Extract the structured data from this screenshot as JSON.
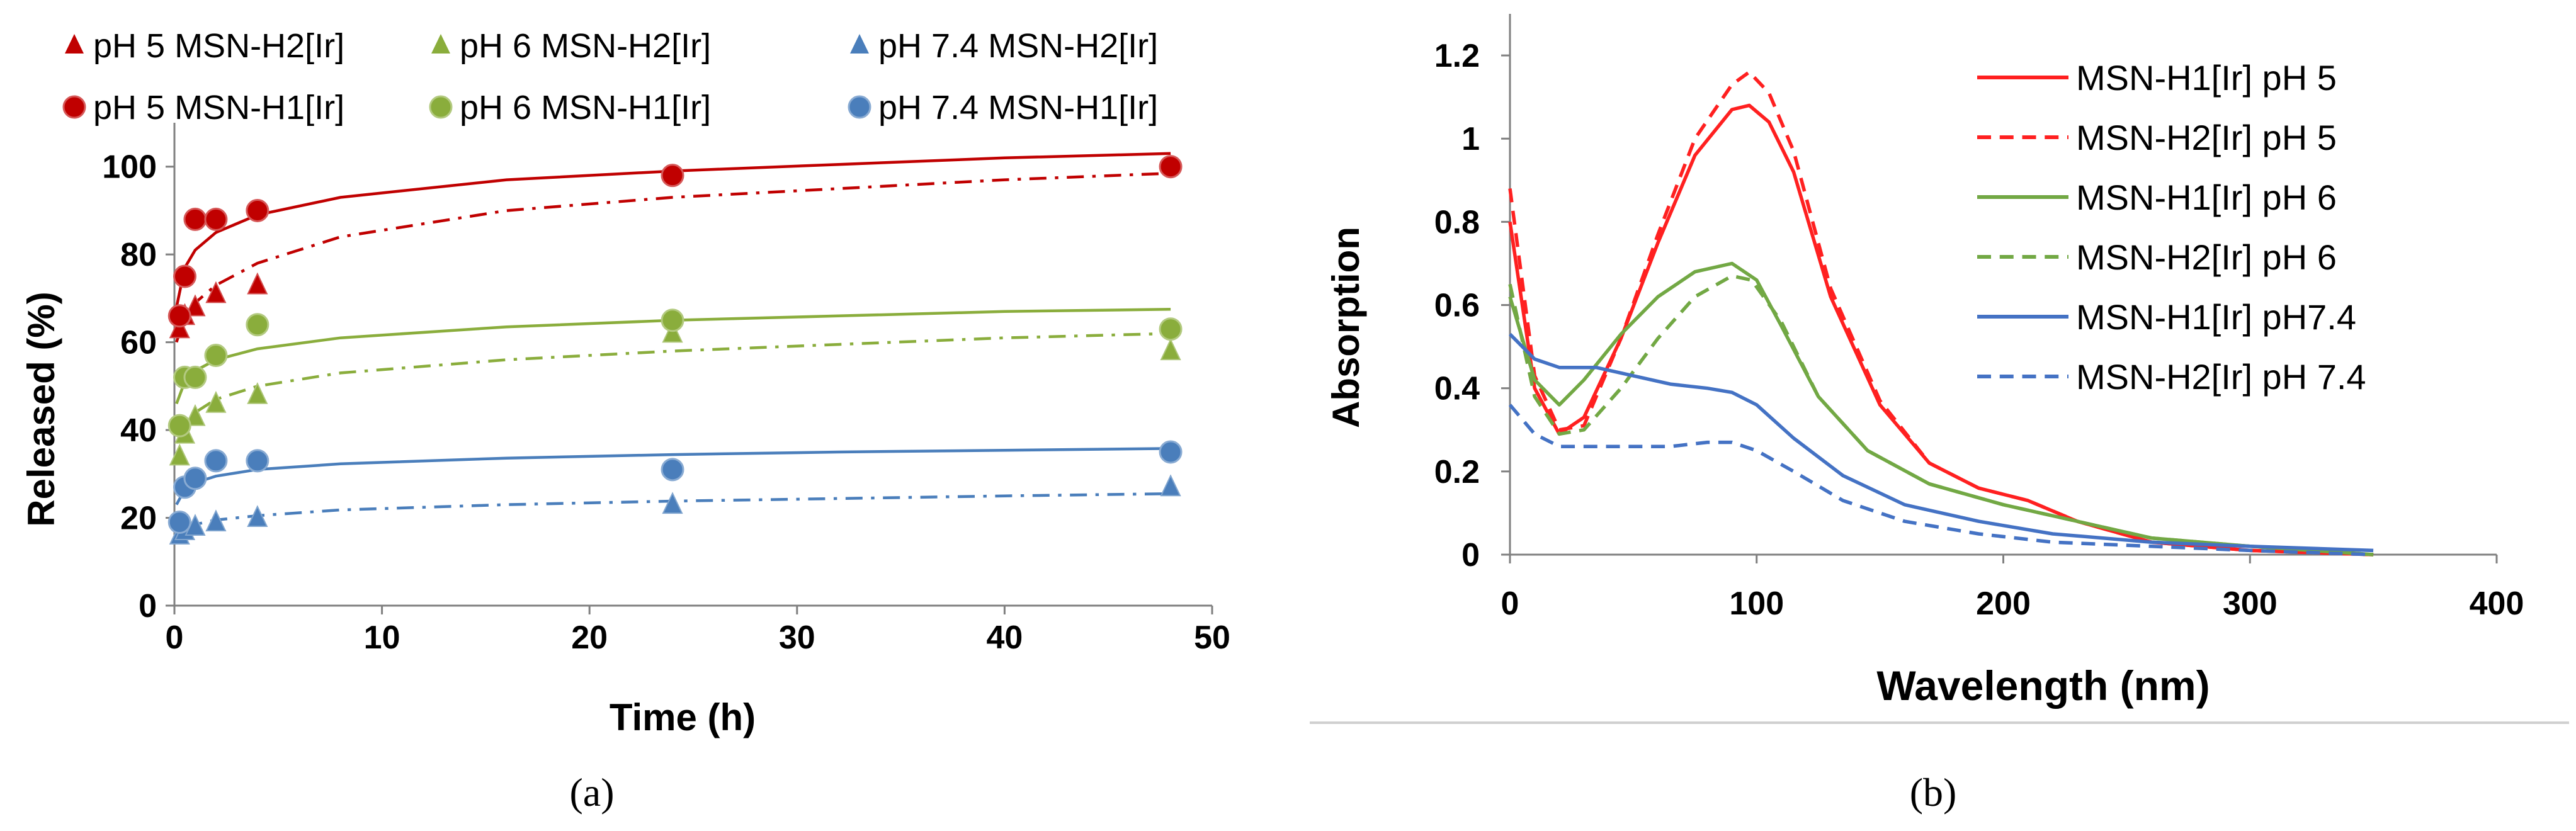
{
  "panel_labels": {
    "a": "(a)",
    "b": "(b)"
  },
  "chart_data": [
    {
      "type": "scatter",
      "xlabel": "Time (h)",
      "ylabel": "Released (%)",
      "xlim": [
        0,
        50
      ],
      "ylim": [
        0,
        110
      ],
      "xticks": [
        0,
        10,
        20,
        30,
        40,
        50
      ],
      "yticks": [
        0,
        20,
        40,
        60,
        80,
        100
      ],
      "legend_position": "top",
      "series": [
        {
          "name": "pH 5 MSN-H2[Ir]",
          "marker": "triangle",
          "color": "#c00000",
          "line": "dashdot",
          "x": [
            0.25,
            0.5,
            1,
            2,
            4
          ],
          "y": [
            63,
            66,
            68,
            71,
            73
          ],
          "fit_x": [
            0.1,
            0.5,
            1,
            2,
            4,
            8,
            16,
            24,
            32,
            40,
            48
          ],
          "fit_y": [
            60,
            66,
            69,
            73,
            78,
            84,
            90,
            93,
            95,
            97,
            98.5
          ]
        },
        {
          "name": "pH 6 MSN-H2[Ir]",
          "marker": "triangle",
          "color": "#8aad3c",
          "line": "dashdot",
          "x": [
            0.25,
            0.5,
            1,
            2,
            4,
            24,
            48
          ],
          "y": [
            34,
            39,
            43,
            46,
            48,
            62,
            58
          ],
          "fit_x": [
            0.1,
            0.5,
            1,
            2,
            4,
            8,
            16,
            24,
            32,
            40,
            48
          ],
          "fit_y": [
            37,
            41,
            44,
            47,
            50,
            53,
            56,
            58,
            59.5,
            61,
            62
          ]
        },
        {
          "name": "pH 7.4 MSN-H2[Ir]",
          "marker": "triangle",
          "color": "#4a7ebb",
          "line": "dashdot",
          "x": [
            0.25,
            0.5,
            1,
            2,
            4,
            24,
            48
          ],
          "y": [
            16,
            17,
            18,
            19,
            20,
            23,
            27
          ],
          "fit_x": [
            0.1,
            0.5,
            1,
            2,
            4,
            8,
            16,
            24,
            32,
            40,
            48
          ],
          "fit_y": [
            16,
            17.5,
            18.5,
            19.5,
            20.5,
            21.8,
            23,
            23.8,
            24.4,
            25,
            25.5
          ]
        },
        {
          "name": "pH 5 MSN-H1[Ir]",
          "marker": "circle",
          "color": "#c00000",
          "line": "solid",
          "x": [
            0.25,
            0.5,
            1,
            2,
            4,
            24,
            48
          ],
          "y": [
            66,
            75,
            88,
            88,
            90,
            98,
            100
          ],
          "fit_x": [
            0.1,
            0.5,
            1,
            2,
            4,
            8,
            16,
            24,
            32,
            40,
            48
          ],
          "fit_y": [
            68,
            77,
            81,
            85,
            89,
            93,
            97,
            99,
            100.5,
            102,
            103
          ]
        },
        {
          "name": "pH 6 MSN-H1[Ir]",
          "marker": "circle",
          "color": "#8aad3c",
          "line": "solid",
          "x": [
            0.25,
            0.5,
            1,
            2,
            4,
            24,
            48
          ],
          "y": [
            41,
            52,
            52,
            57,
            64,
            65,
            63
          ],
          "fit_x": [
            0.1,
            0.5,
            1,
            2,
            4,
            8,
            16,
            24,
            32,
            40,
            48
          ],
          "fit_y": [
            46,
            51,
            53.5,
            56,
            58.5,
            61,
            63.5,
            65,
            66,
            67,
            67.5
          ]
        },
        {
          "name": "pH 7.4 MSN-H1[Ir]",
          "marker": "circle",
          "color": "#4a7ebb",
          "line": "solid",
          "x": [
            0.25,
            0.5,
            1,
            2,
            4,
            24,
            48
          ],
          "y": [
            19,
            27,
            29,
            33,
            33,
            31,
            35
          ],
          "fit_x": [
            0.1,
            0.5,
            1,
            2,
            4,
            8,
            16,
            24,
            32,
            40,
            48
          ],
          "fit_y": [
            23,
            26.5,
            28,
            29.5,
            31,
            32.3,
            33.6,
            34.4,
            35,
            35.4,
            35.8
          ]
        }
      ]
    },
    {
      "type": "line",
      "xlabel": "Wavelength (nm)",
      "ylabel": "Absorption",
      "xlim": [
        0,
        400
      ],
      "ylim": [
        0,
        1.3
      ],
      "xticks": [
        0,
        100,
        200,
        300,
        400
      ],
      "yticks": [
        0,
        0.2,
        0.4,
        0.6,
        0.8,
        1,
        1.2
      ],
      "ytick_labels": [
        "0",
        "0.2",
        "0.4",
        "0.6",
        "0.8",
        "1",
        "1.2"
      ],
      "legend_position": "top-right",
      "series": [
        {
          "name": "MSN-H1[Ir] pH 5",
          "color": "#ff2020",
          "line": "solid",
          "x": [
            0,
            10,
            20,
            30,
            45,
            60,
            75,
            90,
            97,
            105,
            115,
            130,
            150,
            170,
            190,
            210,
            230,
            260,
            300,
            350
          ],
          "y": [
            0.8,
            0.4,
            0.29,
            0.33,
            0.52,
            0.75,
            0.96,
            1.07,
            1.08,
            1.04,
            0.92,
            0.62,
            0.36,
            0.22,
            0.16,
            0.13,
            0.08,
            0.03,
            0.01,
            0.0
          ]
        },
        {
          "name": "MSN-H2[Ir] pH 5",
          "color": "#ff2020",
          "line": "dash",
          "x": [
            0,
            10,
            20,
            30,
            45,
            60,
            75,
            90,
            97,
            105,
            115,
            130,
            150,
            170,
            190,
            210,
            230,
            260,
            300,
            350
          ],
          "y": [
            0.88,
            0.43,
            0.3,
            0.31,
            0.52,
            0.77,
            1.0,
            1.13,
            1.16,
            1.11,
            0.97,
            0.64,
            0.37,
            0.22,
            0.16,
            0.13,
            0.08,
            0.03,
            0.01,
            0.0
          ]
        },
        {
          "name": "MSN-H1[Ir] pH 6",
          "color": "#72a844",
          "line": "solid",
          "x": [
            0,
            10,
            20,
            30,
            45,
            60,
            75,
            90,
            100,
            110,
            125,
            145,
            170,
            200,
            230,
            260,
            300,
            350
          ],
          "y": [
            0.62,
            0.42,
            0.36,
            0.42,
            0.53,
            0.62,
            0.68,
            0.7,
            0.66,
            0.55,
            0.38,
            0.25,
            0.17,
            0.12,
            0.08,
            0.04,
            0.02,
            0.0
          ]
        },
        {
          "name": "MSN-H2[Ir] pH 6",
          "color": "#72a844",
          "line": "dash",
          "x": [
            0,
            10,
            20,
            30,
            45,
            60,
            75,
            90,
            98,
            110,
            125,
            145,
            170,
            200,
            230,
            260,
            300,
            350
          ],
          "y": [
            0.65,
            0.38,
            0.29,
            0.3,
            0.4,
            0.52,
            0.62,
            0.67,
            0.66,
            0.56,
            0.38,
            0.25,
            0.17,
            0.12,
            0.08,
            0.04,
            0.02,
            0.0
          ]
        },
        {
          "name": "MSN-H1[Ir] pH7.4",
          "color": "#4472c4",
          "line": "solid",
          "x": [
            0,
            10,
            20,
            35,
            50,
            65,
            80,
            90,
            100,
            115,
            135,
            160,
            190,
            220,
            260,
            300,
            350
          ],
          "y": [
            0.53,
            0.47,
            0.45,
            0.45,
            0.43,
            0.41,
            0.4,
            0.39,
            0.36,
            0.28,
            0.19,
            0.12,
            0.08,
            0.05,
            0.03,
            0.02,
            0.01
          ]
        },
        {
          "name": "MSN-H2[Ir] pH 7.4",
          "color": "#4472c4",
          "line": "dash",
          "x": [
            0,
            10,
            20,
            35,
            50,
            65,
            80,
            90,
            100,
            115,
            135,
            160,
            190,
            220,
            260,
            300,
            350
          ],
          "y": [
            0.36,
            0.29,
            0.26,
            0.26,
            0.26,
            0.26,
            0.27,
            0.27,
            0.25,
            0.2,
            0.13,
            0.08,
            0.05,
            0.03,
            0.02,
            0.01,
            0.0
          ]
        }
      ]
    }
  ]
}
